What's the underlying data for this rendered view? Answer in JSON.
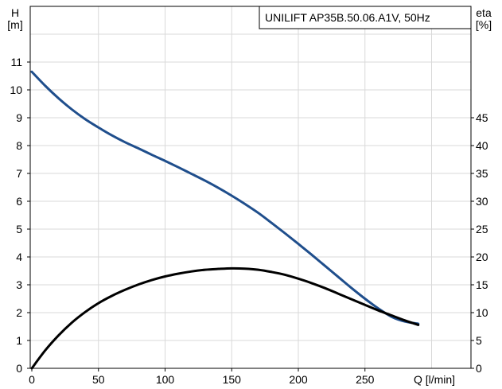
{
  "chart_data": {
    "type": "line",
    "title": "UNILIFT AP35B.50.06.A1V, 50Hz",
    "left_axis": {
      "label_line1": "H",
      "label_line2": "[m]",
      "range": [
        0,
        12
      ],
      "ticks": [
        "0",
        "1",
        "2",
        "3",
        "4",
        "5",
        "6",
        "7",
        "8",
        "9",
        "10",
        "11"
      ]
    },
    "right_axis": {
      "label_line1": "eta",
      "label_line2": "[%]",
      "range": [
        0,
        60
      ],
      "ticks": [
        "0",
        "5",
        "10",
        "15",
        "20",
        "25",
        "30",
        "35",
        "40",
        "45"
      ]
    },
    "x_axis": {
      "label": "Q [l/min]",
      "range": [
        0,
        300
      ],
      "ticks": [
        "0",
        "50",
        "100",
        "150",
        "200",
        "250"
      ]
    },
    "grid": true,
    "series": [
      {
        "axis": "left",
        "color": "#1f4e8c",
        "points": [
          [
            0,
            10.65
          ],
          [
            10,
            10.15
          ],
          [
            20,
            9.7
          ],
          [
            30,
            9.3
          ],
          [
            40,
            8.95
          ],
          [
            50,
            8.65
          ],
          [
            60,
            8.37
          ],
          [
            70,
            8.12
          ],
          [
            80,
            7.9
          ],
          [
            90,
            7.67
          ],
          [
            100,
            7.45
          ],
          [
            110,
            7.22
          ],
          [
            120,
            6.98
          ],
          [
            130,
            6.74
          ],
          [
            140,
            6.48
          ],
          [
            150,
            6.2
          ],
          [
            160,
            5.9
          ],
          [
            170,
            5.58
          ],
          [
            180,
            5.22
          ],
          [
            190,
            4.85
          ],
          [
            200,
            4.47
          ],
          [
            210,
            4.08
          ],
          [
            220,
            3.68
          ],
          [
            230,
            3.28
          ],
          [
            240,
            2.88
          ],
          [
            250,
            2.5
          ],
          [
            260,
            2.15
          ],
          [
            270,
            1.85
          ],
          [
            280,
            1.68
          ],
          [
            290,
            1.6
          ]
        ]
      },
      {
        "axis": "right",
        "color": "#000000",
        "points": [
          [
            0,
            0
          ],
          [
            10,
            3.2
          ],
          [
            20,
            5.9
          ],
          [
            30,
            8.2
          ],
          [
            40,
            10.1
          ],
          [
            50,
            11.7
          ],
          [
            60,
            13.0
          ],
          [
            70,
            14.1
          ],
          [
            80,
            15.05
          ],
          [
            90,
            15.85
          ],
          [
            100,
            16.5
          ],
          [
            110,
            17.0
          ],
          [
            120,
            17.4
          ],
          [
            130,
            17.7
          ],
          [
            140,
            17.85
          ],
          [
            150,
            17.95
          ],
          [
            160,
            17.9
          ],
          [
            170,
            17.7
          ],
          [
            180,
            17.3
          ],
          [
            190,
            16.8
          ],
          [
            200,
            16.1
          ],
          [
            210,
            15.3
          ],
          [
            220,
            14.4
          ],
          [
            230,
            13.4
          ],
          [
            240,
            12.4
          ],
          [
            250,
            11.4
          ],
          [
            260,
            10.4
          ],
          [
            270,
            9.5
          ],
          [
            280,
            8.6
          ],
          [
            290,
            7.8
          ]
        ]
      }
    ]
  }
}
